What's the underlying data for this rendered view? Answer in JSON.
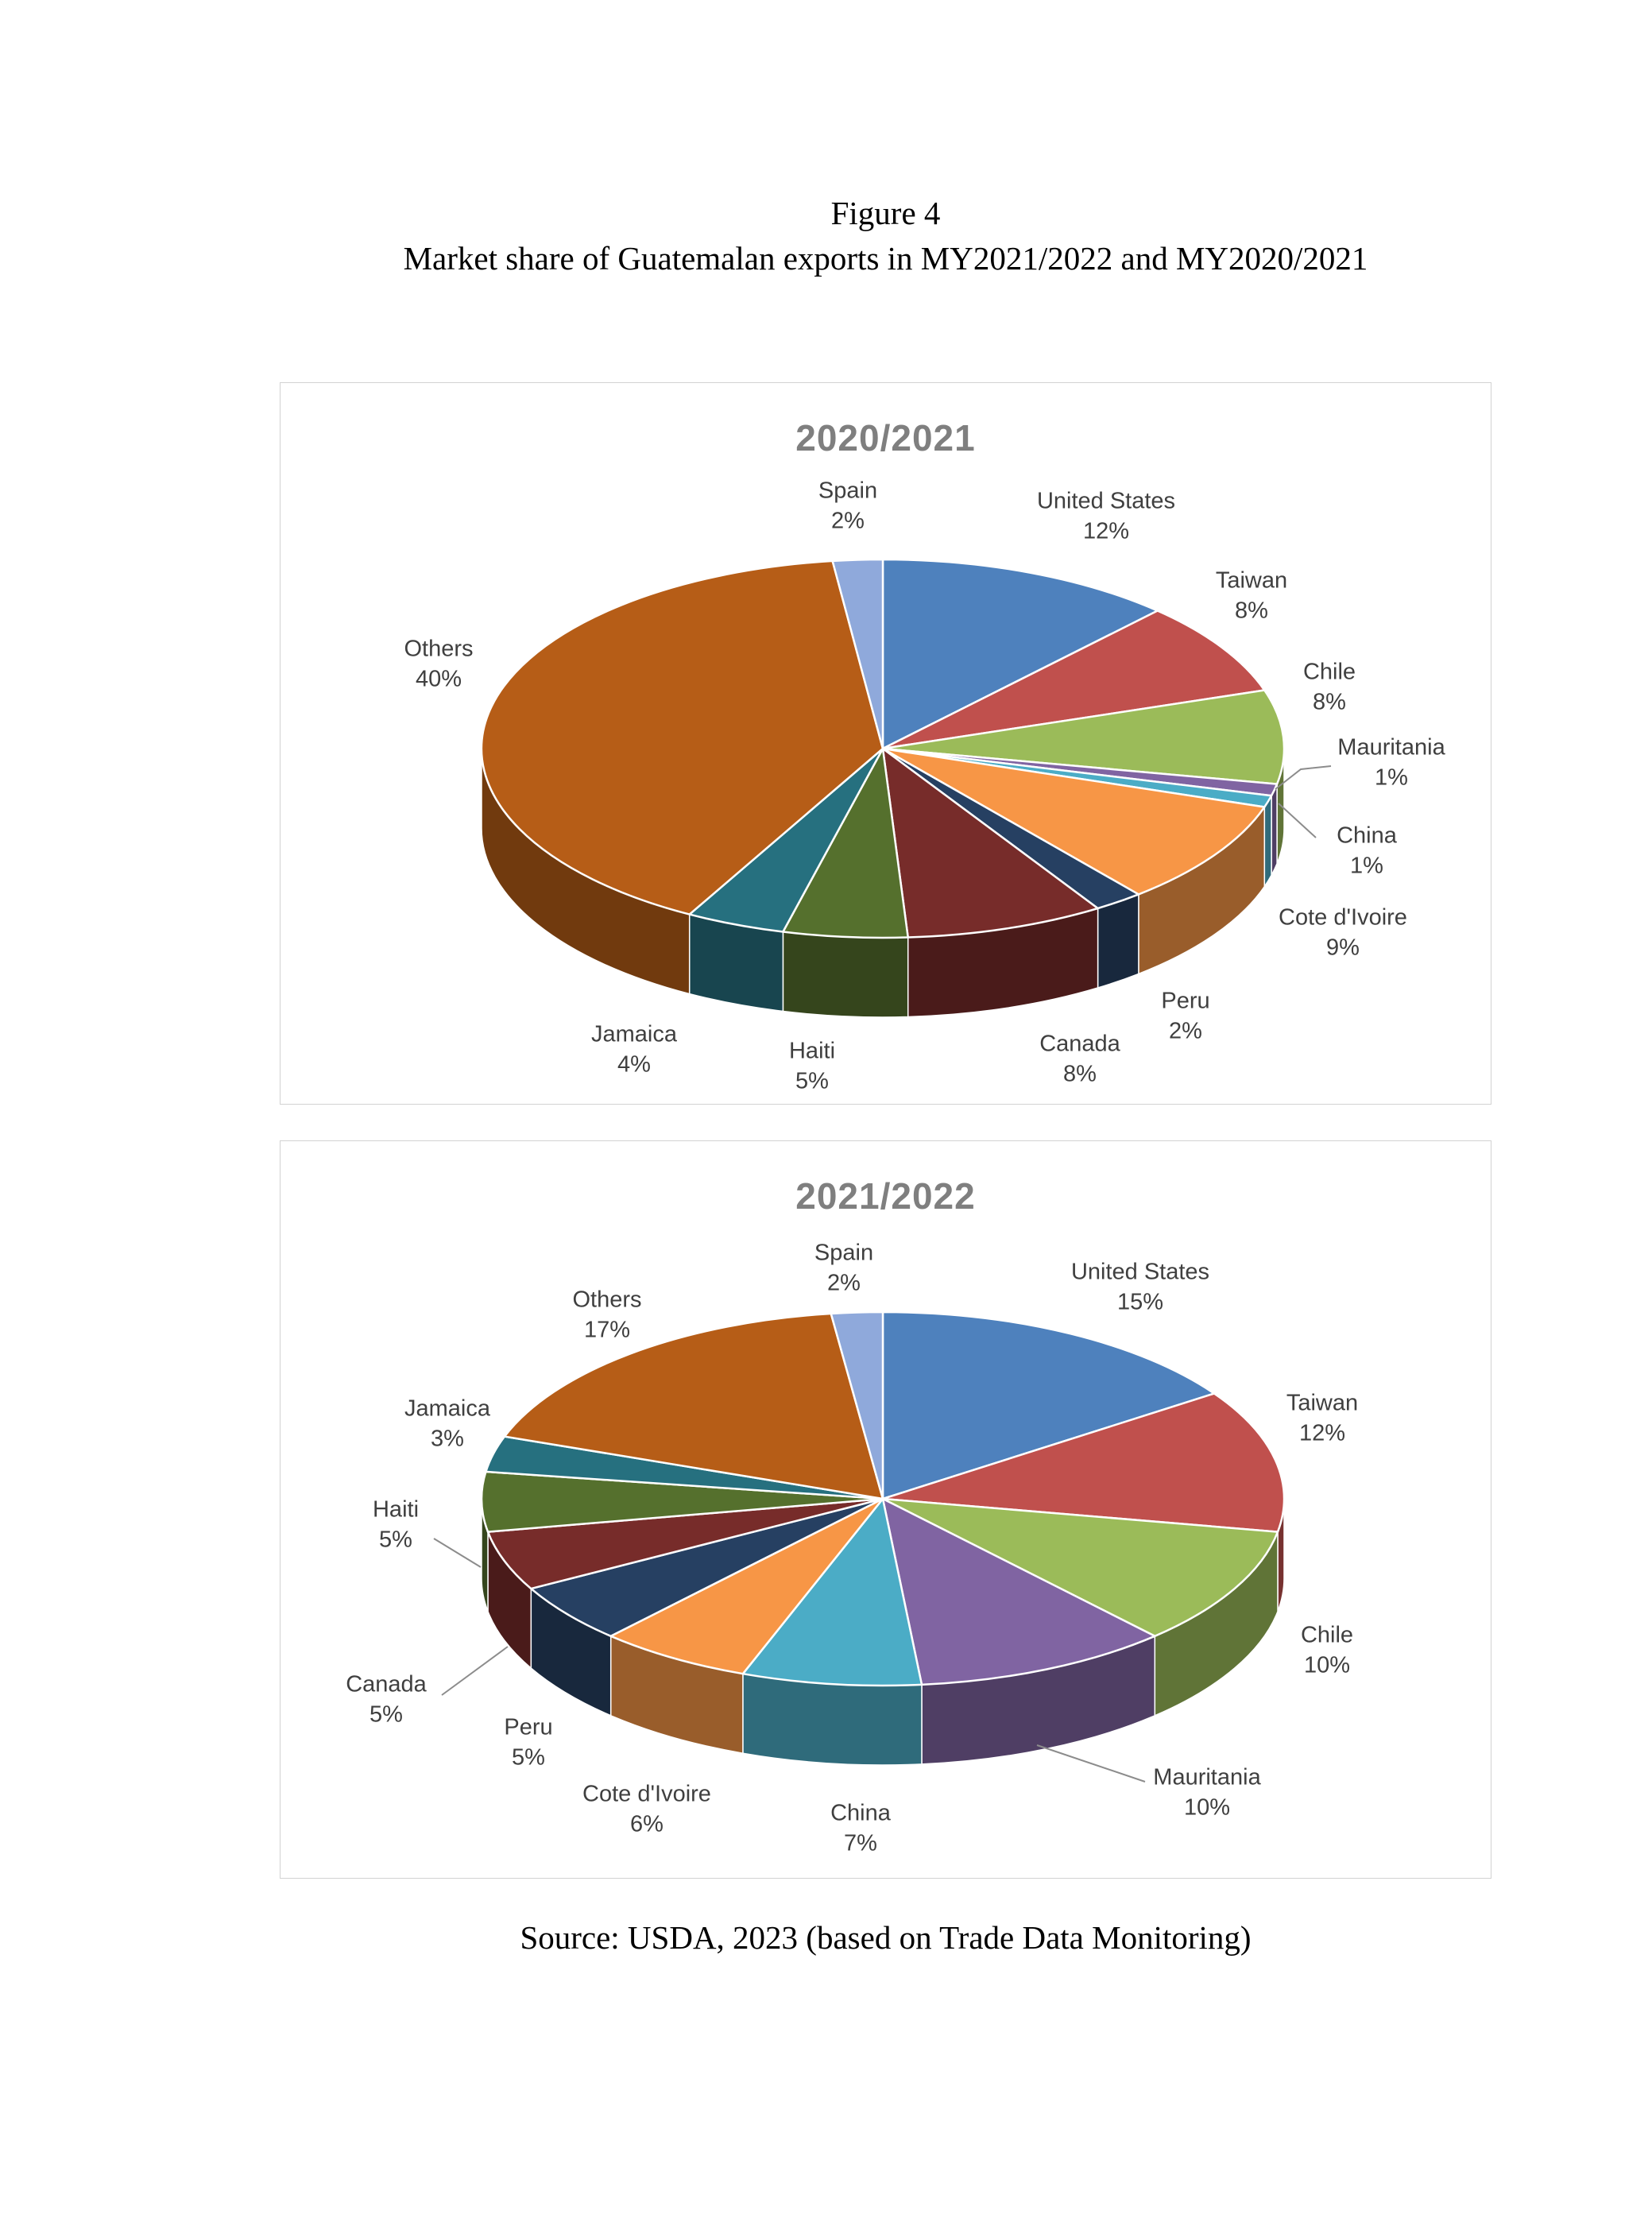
{
  "page": {
    "figure_label": "Figure 4",
    "title": "Market share of Guatemalan exports in MY2021/2022 and MY2020/2021",
    "source": "Source: USDA, 2023 (based on Trade Data Monitoring)"
  },
  "chart_data": [
    {
      "type": "pie",
      "style": "3d",
      "title": "2020/2021",
      "unit": "%",
      "legend": "none",
      "labels_show": "category name and percentage",
      "slices": [
        {
          "label": "United States",
          "value": 12,
          "color": "#4E81BD"
        },
        {
          "label": "Taiwan",
          "value": 8,
          "color": "#C0504D"
        },
        {
          "label": "Chile",
          "value": 8,
          "color": "#9BBB59"
        },
        {
          "label": "Mauritania",
          "value": 1,
          "color": "#8064A2"
        },
        {
          "label": "China",
          "value": 1,
          "color": "#4BACC6"
        },
        {
          "label": "Cote d'Ivoire",
          "value": 9,
          "color": "#F79646"
        },
        {
          "label": "Peru",
          "value": 2,
          "color": "#264062"
        },
        {
          "label": "Canada",
          "value": 8,
          "color": "#772C2A"
        },
        {
          "label": "Haiti",
          "value": 5,
          "color": "#55702D"
        },
        {
          "label": "Jamaica",
          "value": 4,
          "color": "#26707F"
        },
        {
          "label": "Others",
          "value": 40,
          "color": "#B65D17"
        },
        {
          "label": "Spain",
          "value": 2,
          "color": "#8FA9DB"
        }
      ]
    },
    {
      "type": "pie",
      "style": "3d",
      "title": "2021/2022",
      "unit": "%",
      "legend": "none",
      "labels_show": "category name and percentage",
      "slices": [
        {
          "label": "United States",
          "value": 15,
          "color": "#4E81BD"
        },
        {
          "label": "Taiwan",
          "value": 12,
          "color": "#C0504D"
        },
        {
          "label": "Chile",
          "value": 10,
          "color": "#9BBB59"
        },
        {
          "label": "Mauritania",
          "value": 10,
          "color": "#8064A2"
        },
        {
          "label": "China",
          "value": 7,
          "color": "#4BACC6"
        },
        {
          "label": "Cote d'Ivoire",
          "value": 6,
          "color": "#F79646"
        },
        {
          "label": "Peru",
          "value": 5,
          "color": "#264062"
        },
        {
          "label": "Canada",
          "value": 5,
          "color": "#772C2A"
        },
        {
          "label": "Haiti",
          "value": 5,
          "color": "#55702D"
        },
        {
          "label": "Jamaica",
          "value": 3,
          "color": "#26707F"
        },
        {
          "label": "Others",
          "value": 17,
          "color": "#B65D17"
        },
        {
          "label": "Spain",
          "value": 2,
          "color": "#8FA9DB"
        }
      ]
    }
  ]
}
